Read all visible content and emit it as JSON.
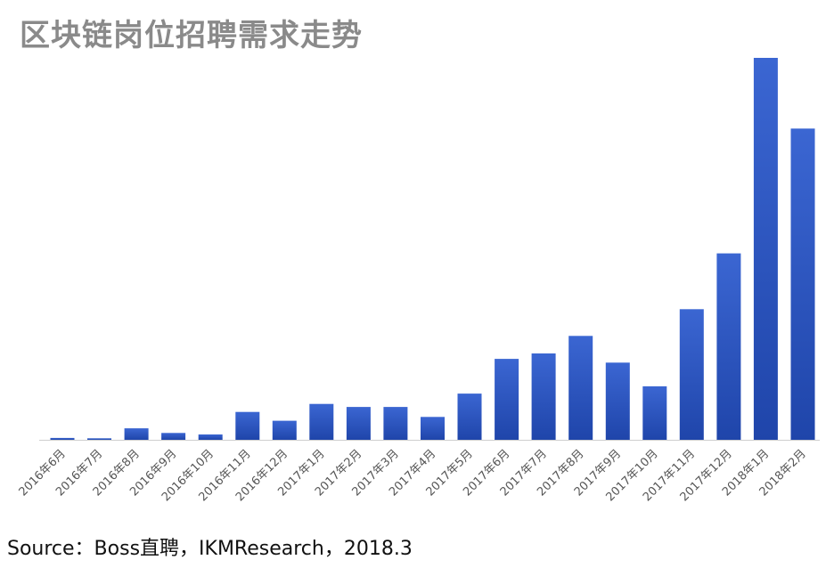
{
  "title": "区块链岗位招聘需求走势",
  "source": "Source：Boss直聘，IKMResearch，2018.3",
  "colors": {
    "bar_top": "#3b66d2",
    "bar_bottom": "#1f45aa",
    "baseline": "#cfcfcf",
    "title": "#8a8a8a",
    "tick_label": "#555555"
  },
  "chart_data": {
    "type": "bar",
    "title": "区块链岗位招聘需求走势",
    "xlabel": "",
    "ylabel": "",
    "y_axis_shown": false,
    "grid": false,
    "legend": "none",
    "categories": [
      "2016年6月",
      "2016年7月",
      "2016年8月",
      "2016年9月",
      "2016年10月",
      "2016年11月",
      "2016年12月",
      "2017年1月",
      "2017年2月",
      "2017年3月",
      "2017年4月",
      "2017年5月",
      "2017年6月",
      "2017年7月",
      "2017年8月",
      "2017年9月",
      "2017年10月",
      "2017年11月",
      "2017年12月",
      "2018年1月",
      "2018年2月"
    ],
    "values": [
      0.5,
      0.4,
      3.0,
      1.8,
      1.4,
      7.3,
      5.0,
      9.4,
      8.6,
      8.6,
      6.0,
      12.1,
      21.2,
      22.6,
      27.2,
      20.2,
      14.0,
      34.2,
      48.8,
      100.0,
      81.5
    ],
    "ylim": [
      0,
      100
    ]
  }
}
